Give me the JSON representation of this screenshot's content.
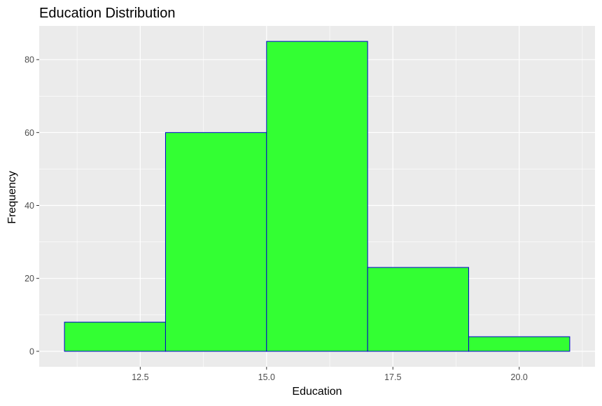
{
  "chart_data": {
    "type": "bar",
    "subtype": "histogram",
    "title": "Education Distribution",
    "xlabel": "Education",
    "ylabel": "Frequency",
    "bins": [
      {
        "x0": 11,
        "x1": 13,
        "count": 8
      },
      {
        "x0": 13,
        "x1": 15,
        "count": 60
      },
      {
        "x0": 15,
        "x1": 17,
        "count": 85
      },
      {
        "x0": 17,
        "x1": 19,
        "count": 23
      },
      {
        "x0": 19,
        "x1": 21,
        "count": 4
      }
    ],
    "xlim": [
      10.5,
      21.5
    ],
    "ylim": [
      -4.25,
      89.25
    ],
    "x_ticks": [
      12.5,
      15.0,
      17.5,
      20.0
    ],
    "x_tick_labels": [
      "12.5",
      "15.0",
      "17.5",
      "20.0"
    ],
    "y_ticks": [
      0,
      20,
      40,
      60,
      80
    ],
    "y_tick_labels": [
      "0",
      "20",
      "40",
      "60",
      "80"
    ],
    "grid": true,
    "colors": {
      "panel_background": "#ebebeb",
      "grid_major": "#ffffff",
      "bar_fill": "#33ff33",
      "bar_outline": "#0000cd"
    }
  }
}
